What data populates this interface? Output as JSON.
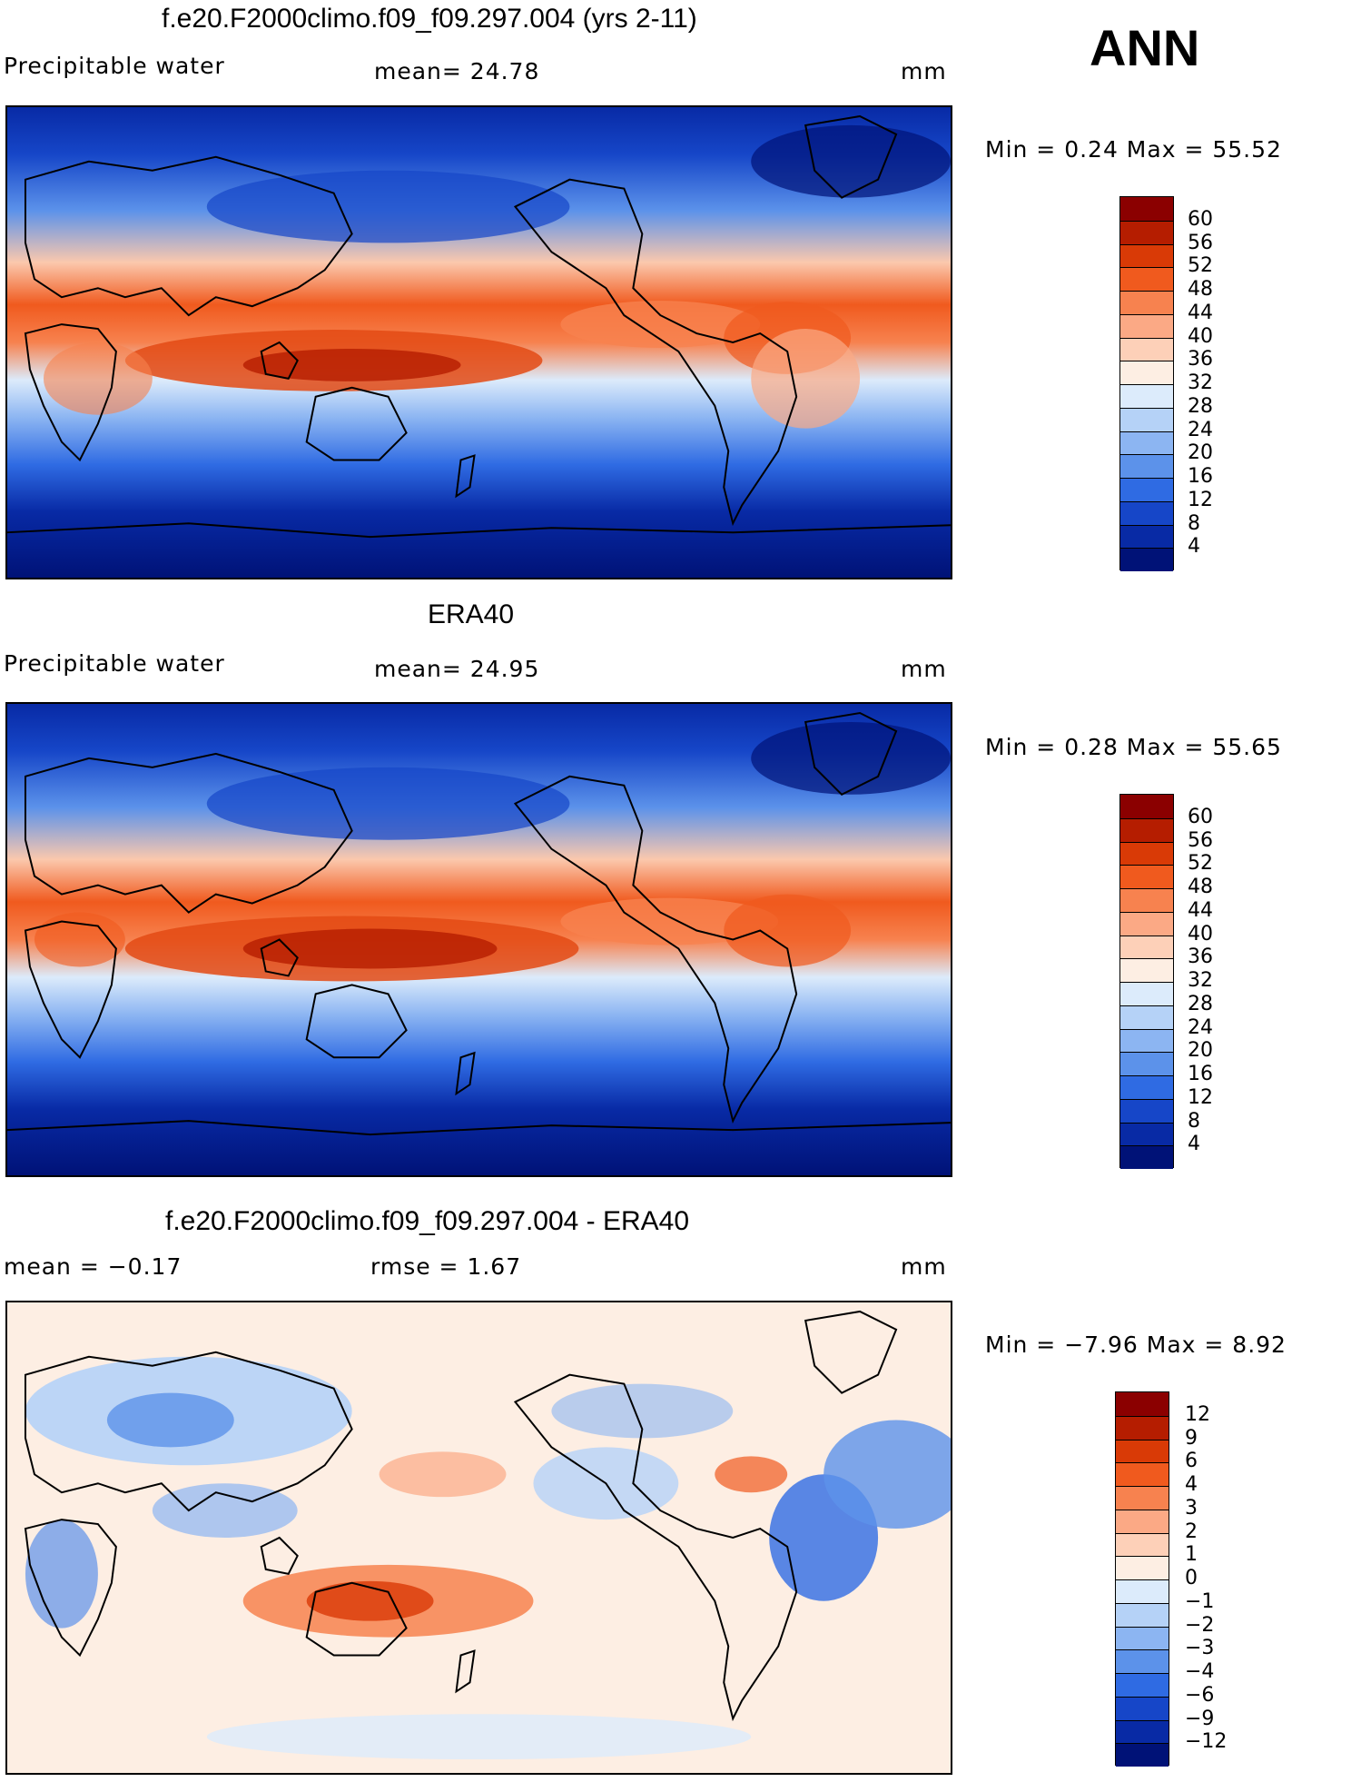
{
  "season": "ANN",
  "panels": [
    {
      "title": "f.e20.F2000climo.f09_f09.297.004 (yrs 2-11)",
      "left_label": "Precipitable water",
      "mid_label": "mean=   24.78",
      "units": "mm",
      "minmax": "Min  =    0.24 Max  =   55.52",
      "kind": "abs",
      "colorbar_labels": [
        "60",
        "56",
        "52",
        "48",
        "44",
        "40",
        "36",
        "32",
        "28",
        "24",
        "20",
        "16",
        "12",
        "8",
        "4"
      ]
    },
    {
      "title": "ERA40",
      "left_label": "Precipitable water",
      "mid_label": "mean=   24.95",
      "units": "mm",
      "minmax": "Min  =    0.28 Max  =   55.65",
      "kind": "abs",
      "colorbar_labels": [
        "60",
        "56",
        "52",
        "48",
        "44",
        "40",
        "36",
        "32",
        "28",
        "24",
        "20",
        "16",
        "12",
        "8",
        "4"
      ]
    },
    {
      "title": "f.e20.F2000climo.f09_f09.297.004 - ERA40",
      "left_label": "mean  =   −0.17",
      "mid_label": "rmse  =     1.67",
      "units": "mm",
      "minmax": "Min  =  −7.96  Max  =     8.92",
      "kind": "diff",
      "colorbar_labels": [
        "12",
        "9",
        "6",
        "4",
        "3",
        "2",
        "1",
        "0",
        "−1",
        "−2",
        "−3",
        "−4",
        "−6",
        "−9",
        "−12"
      ]
    }
  ],
  "colors": {
    "abs_scale": [
      "#8b0000",
      "#b51d00",
      "#d93a06",
      "#f05a1e",
      "#f7824f",
      "#fba985",
      "#fdd0b8",
      "#fdeee3",
      "#dcebfb",
      "#b5d2f7",
      "#8cb5f2",
      "#5c92ea",
      "#2f6be3",
      "#1646c8",
      "#082aa5",
      "#001277"
    ],
    "diff_scale": [
      "#8b0000",
      "#b51d00",
      "#d93a06",
      "#f05a1e",
      "#f7824f",
      "#fba985",
      "#fdd0b8",
      "#fdeee3",
      "#dcebfb",
      "#b5d2f7",
      "#8cb5f2",
      "#5c92ea",
      "#2f6be3",
      "#1646c8",
      "#082aa5",
      "#001277"
    ],
    "coastline": "#000000"
  }
}
